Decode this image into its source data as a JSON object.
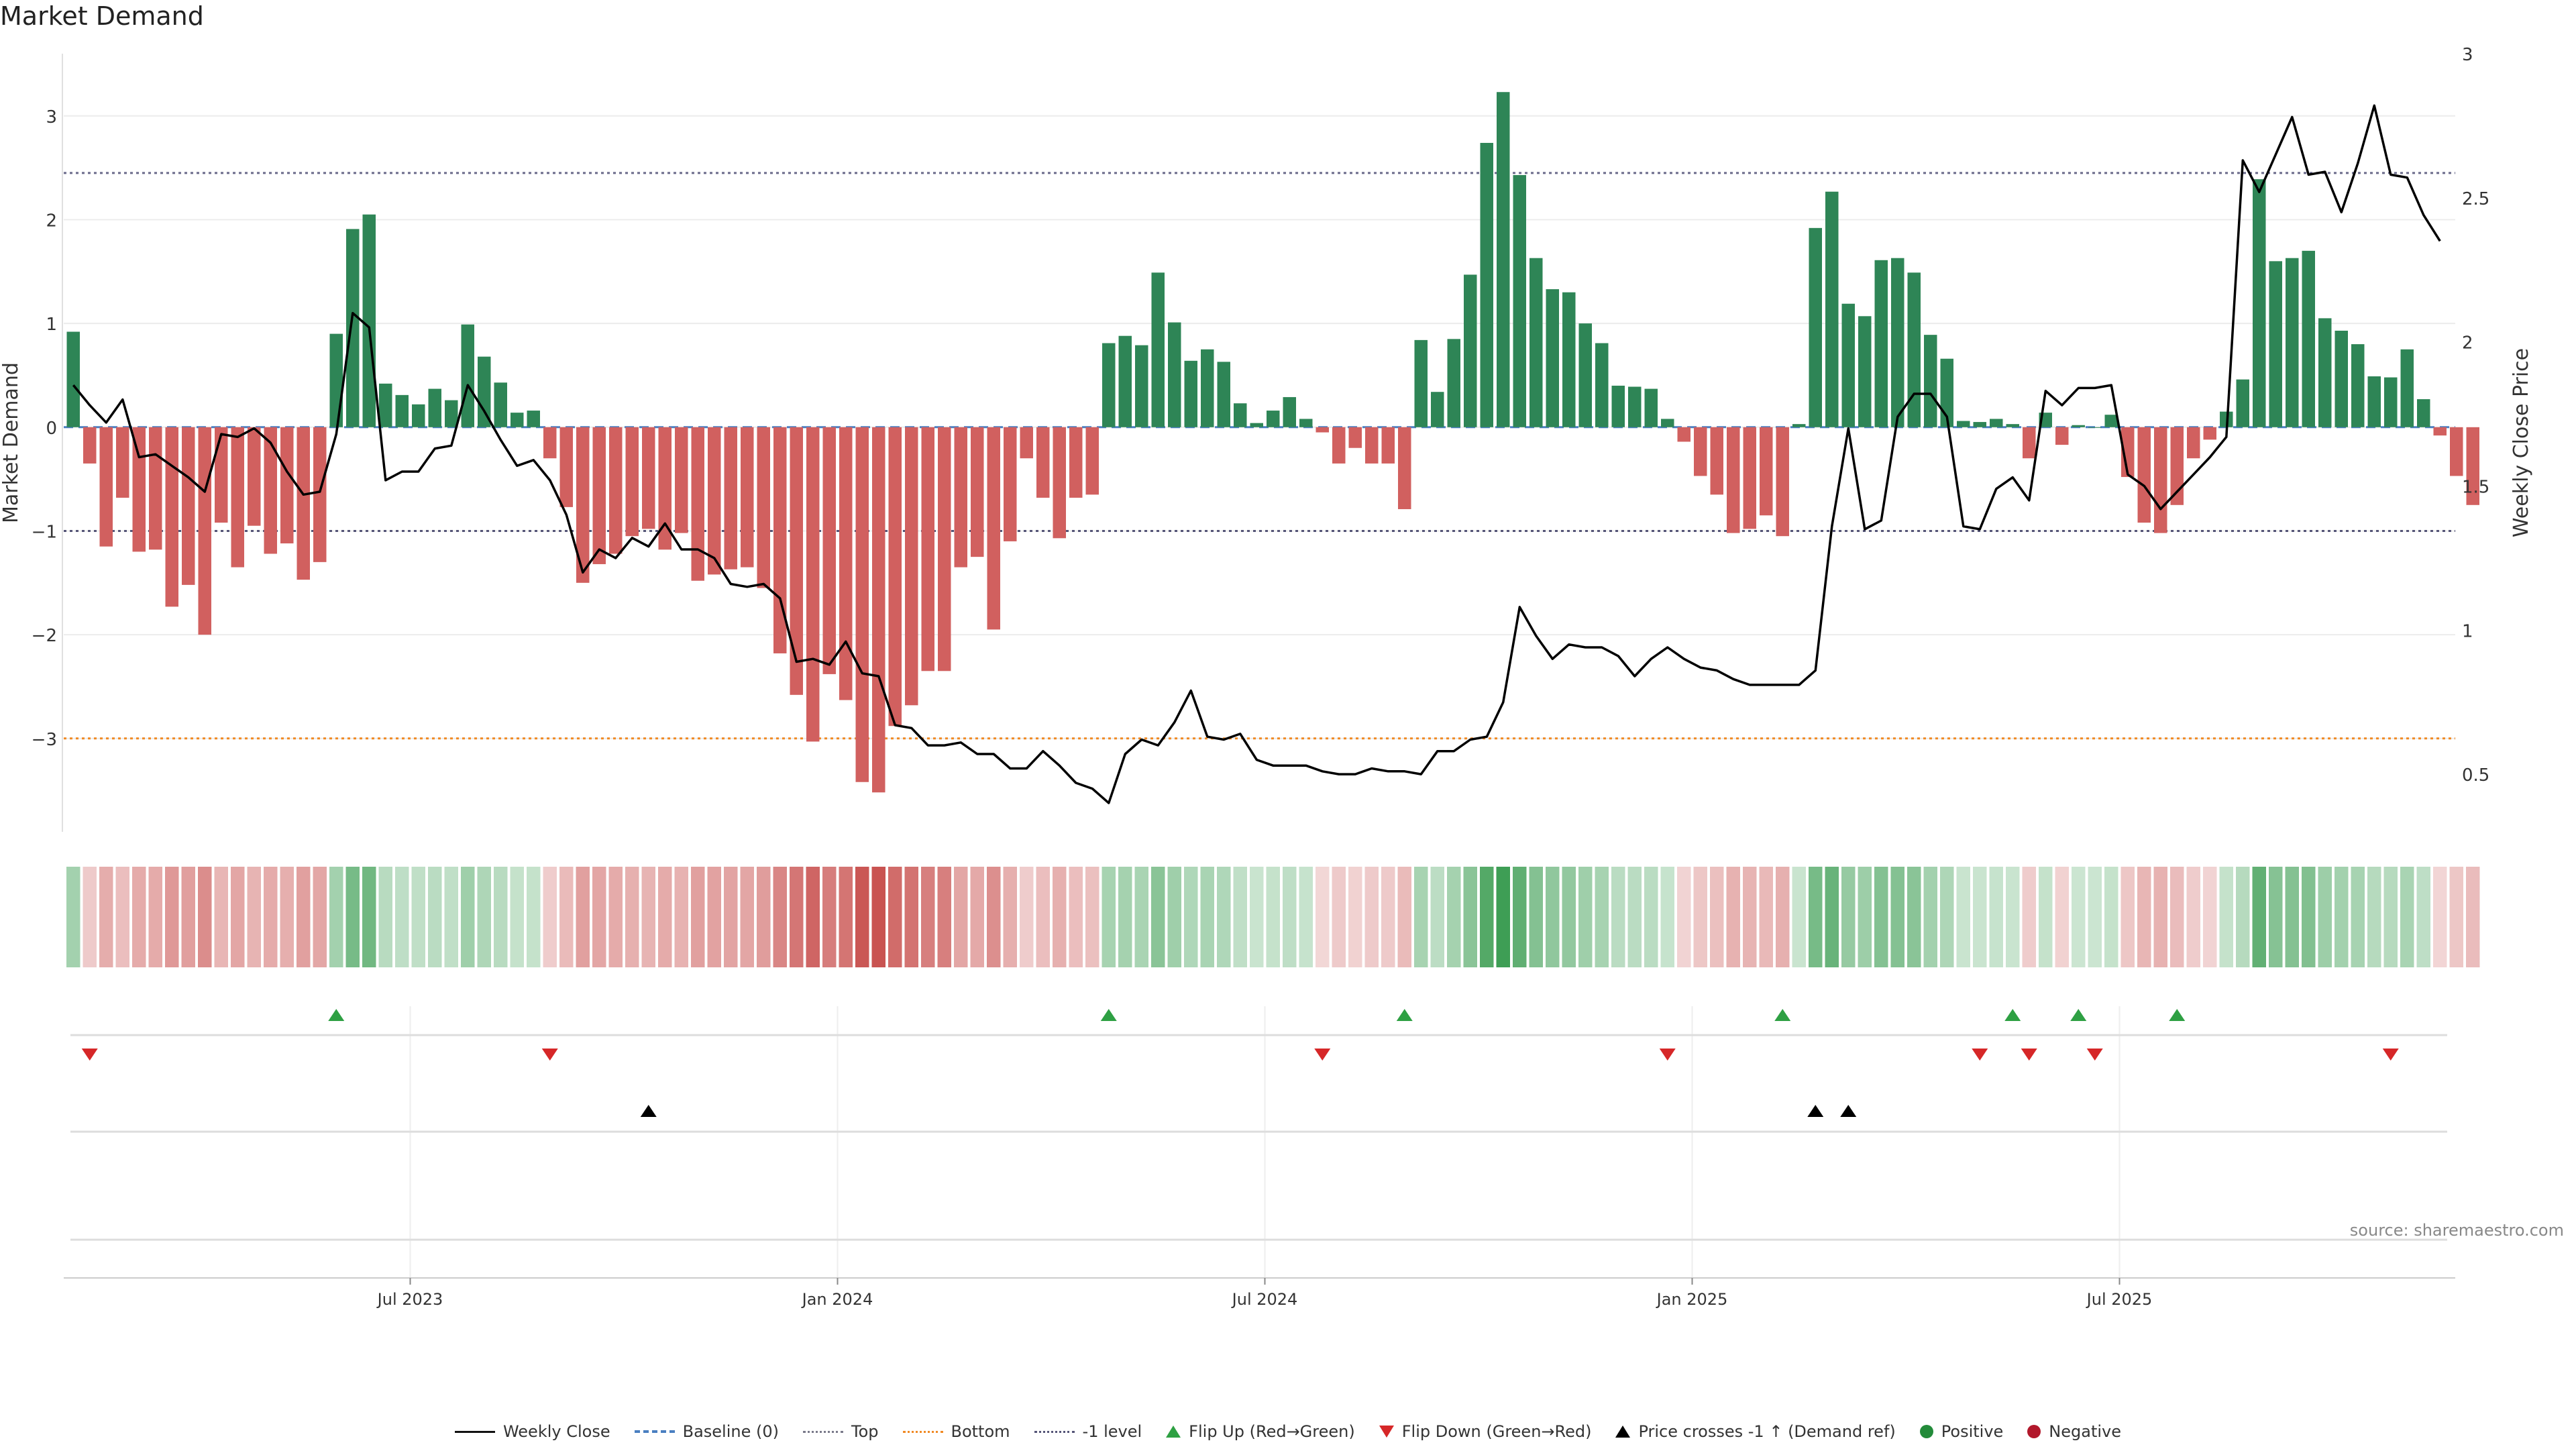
{
  "chart_data": {
    "type": "bar",
    "title": "Market Demand",
    "ylabel": "Market Demand",
    "y2label": "Weekly Close Price",
    "ylim": [
      -3.9,
      3.6
    ],
    "y2lim": [
      0.3,
      3.0
    ],
    "yticks": [
      3,
      2,
      1,
      0,
      -1,
      -2,
      -3
    ],
    "ytick_labels": [
      "3",
      "2",
      "1",
      "0",
      "−1",
      "−2",
      "−3"
    ],
    "y2ticks": [
      3,
      2.5,
      2,
      1.5,
      1,
      0.5
    ],
    "y2tick_labels": [
      "3",
      "2.5",
      "2",
      "1.5",
      "1",
      "0.5"
    ],
    "xtick_labels": [
      "Jul 2023",
      "Jan 2024",
      "Jul 2024",
      "Jan 2025",
      "Jul 2025"
    ],
    "xtick_week_index": [
      21,
      47,
      73,
      99,
      125
    ],
    "grid": true,
    "reference_lines": [
      {
        "name": "Baseline (0)",
        "value": 0,
        "color": "#4a7fc1",
        "style": "dashed"
      },
      {
        "name": "Top",
        "value": 2.45,
        "color": "#6a6a8a",
        "style": "dotted"
      },
      {
        "name": "Bottom",
        "value": -3.0,
        "color": "#f08a24",
        "style": "dotted"
      },
      {
        "name": "-1 level",
        "value": -1.0,
        "color": "#555577",
        "style": "dotted"
      }
    ],
    "series": [
      {
        "name": "Market Demand",
        "colors": {
          "positive": "#2e8556",
          "negative": "#d1605f"
        },
        "values": [
          0.92,
          -0.35,
          -1.15,
          -0.68,
          -1.2,
          -1.18,
          -1.73,
          -1.52,
          -2.0,
          -0.92,
          -1.35,
          -0.95,
          -1.22,
          -1.12,
          -1.47,
          -1.3,
          0.9,
          1.91,
          2.05,
          0.42,
          0.31,
          0.22,
          0.37,
          0.26,
          0.99,
          0.68,
          0.43,
          0.14,
          0.16,
          -0.3,
          -0.77,
          -1.5,
          -1.32,
          -1.22,
          -1.05,
          -0.98,
          -1.18,
          -1.02,
          -1.48,
          -1.42,
          -1.37,
          -1.35,
          -1.55,
          -2.18,
          -2.58,
          -3.03,
          -2.38,
          -2.63,
          -3.42,
          -3.52,
          -2.88,
          -2.68,
          -2.35,
          -2.35,
          -1.35,
          -1.25,
          -1.95,
          -1.1,
          -0.3,
          -0.68,
          -1.07,
          -0.68,
          -0.65,
          0.81,
          0.88,
          0.79,
          1.49,
          1.01,
          0.64,
          0.75,
          0.63,
          0.23,
          0.04,
          0.16,
          0.29,
          0.08,
          -0.05,
          -0.35,
          -0.2,
          -0.35,
          -0.35,
          -0.79,
          0.84,
          0.34,
          0.85,
          1.47,
          2.74,
          3.23,
          2.43,
          1.63,
          1.33,
          1.3,
          1.0,
          0.81,
          0.4,
          0.39,
          0.37,
          0.08,
          -0.14,
          -0.47,
          -0.65,
          -1.02,
          -0.98,
          -0.85,
          -1.05,
          0.03,
          1.92,
          2.27,
          1.19,
          1.07,
          1.61,
          1.63,
          1.49,
          0.89,
          0.66,
          0.06,
          0.05,
          0.08,
          0.03,
          -0.3,
          0.14,
          -0.17,
          0.02,
          0.0,
          0.12,
          -0.48,
          -0.92,
          -1.02,
          -0.75,
          -0.3,
          -0.12,
          0.15,
          0.46,
          2.39,
          1.6,
          1.63,
          1.7,
          1.05,
          0.93,
          0.8,
          0.49,
          0.48,
          0.75,
          0.27,
          -0.08,
          -0.47,
          -0.75
        ]
      },
      {
        "name": "Weekly Close",
        "axis": "right",
        "color": "#000000",
        "values": [
          1.85,
          1.78,
          1.72,
          1.8,
          1.6,
          1.61,
          1.57,
          1.53,
          1.48,
          1.68,
          1.67,
          1.7,
          1.65,
          1.55,
          1.47,
          1.48,
          1.68,
          2.1,
          2.05,
          1.52,
          1.55,
          1.55,
          1.63,
          1.64,
          1.85,
          1.76,
          1.66,
          1.57,
          1.59,
          1.52,
          1.4,
          1.2,
          1.28,
          1.25,
          1.32,
          1.29,
          1.37,
          1.28,
          1.28,
          1.25,
          1.16,
          1.15,
          1.16,
          1.11,
          0.89,
          0.9,
          0.88,
          0.96,
          0.85,
          0.84,
          0.67,
          0.66,
          0.6,
          0.6,
          0.61,
          0.57,
          0.57,
          0.52,
          0.52,
          0.58,
          0.53,
          0.47,
          0.45,
          0.4,
          0.57,
          0.62,
          0.6,
          0.68,
          0.79,
          0.63,
          0.62,
          0.64,
          0.55,
          0.53,
          0.53,
          0.53,
          0.51,
          0.5,
          0.5,
          0.52,
          0.51,
          0.51,
          0.5,
          0.58,
          0.58,
          0.62,
          0.63,
          0.75,
          1.08,
          0.98,
          0.9,
          0.95,
          0.94,
          0.94,
          0.91,
          0.84,
          0.9,
          0.94,
          0.9,
          0.87,
          0.86,
          0.83,
          0.81,
          0.81,
          0.81,
          0.81,
          0.86,
          1.36,
          1.7,
          1.35,
          1.38,
          1.74,
          1.82,
          1.82,
          1.74,
          1.36,
          1.35,
          1.49,
          1.53,
          1.45,
          1.83,
          1.78,
          1.84,
          1.84,
          1.85,
          1.54,
          1.5,
          1.42,
          1.48,
          1.54,
          1.6,
          1.67,
          2.63,
          2.52,
          2.65,
          2.78,
          2.58,
          2.59,
          2.45,
          2.62,
          2.82,
          2.58,
          2.57,
          2.44,
          2.35
        ]
      }
    ],
    "heatmap_strip": "demand intensity per week (green = positive, red = negative)",
    "flip_up_week_index": [
      16,
      63,
      81,
      104,
      118,
      122,
      128
    ],
    "flip_down_week_index": [
      1,
      29,
      76,
      97,
      116,
      119,
      123,
      141
    ],
    "price_cross_week_index": [
      35,
      106,
      108
    ],
    "source": "source: sharemaestro.com"
  },
  "legend": [
    {
      "label": "Weekly Close",
      "marker": "line-black"
    },
    {
      "label": "Baseline (0)",
      "marker": "dash-blue"
    },
    {
      "label": "Top",
      "marker": "dot-grey"
    },
    {
      "label": "Bottom",
      "marker": "dot-orange"
    },
    {
      "label": "-1 level",
      "marker": "dot-navy"
    },
    {
      "label": "Flip Up (Red→Green)",
      "marker": "triangle-up-green"
    },
    {
      "label": "Flip Down (Green→Red)",
      "marker": "triangle-down-red"
    },
    {
      "label": "Price crosses -1 ↑ (Demand ref)",
      "marker": "triangle-up-black"
    },
    {
      "label": "Positive",
      "marker": "circle-green"
    },
    {
      "label": "Negative",
      "marker": "circle-red"
    }
  ]
}
